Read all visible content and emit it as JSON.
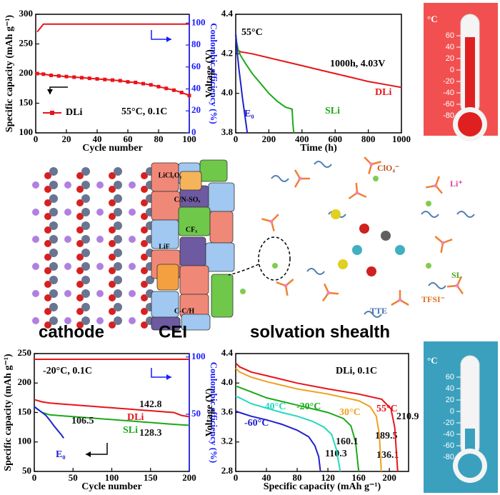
{
  "chart_data": [
    {
      "type": "line",
      "x_label": "Cycle number",
      "y_label": "Specific capacity (mAh g⁻¹)",
      "y2_label": "Coulombic efficiency (%)",
      "x": [
        1,
        5,
        10,
        15,
        20,
        25,
        30,
        35,
        40,
        45,
        50,
        55,
        60,
        65,
        70,
        75,
        80,
        85,
        90,
        95,
        100
      ],
      "xlim": [
        0,
        100
      ],
      "xticks": [
        0,
        20,
        40,
        60,
        80,
        100
      ],
      "ylim": [
        100,
        300
      ],
      "yticks": [
        100,
        150,
        200,
        250,
        300
      ],
      "y2lim": [
        0,
        108
      ],
      "y2ticks": [
        0,
        20,
        40,
        60,
        80,
        100
      ],
      "y2color": "#1a1aff",
      "legend": "lower left",
      "annotations": [
        "55°C, 0.1C"
      ],
      "series": [
        {
          "name": "DLi",
          "color": "#e8141a",
          "marker": "square",
          "values": [
            200,
            199,
            197,
            196,
            195,
            194,
            193,
            192,
            191,
            190,
            189,
            188,
            186,
            185,
            183,
            181,
            178,
            175,
            172,
            168,
            163
          ]
        },
        {
          "color": "#e8141a",
          "axis": "y2",
          "values": [
            92,
            99,
            99,
            99,
            99,
            99,
            99,
            99,
            99,
            99,
            99,
            99,
            99,
            99,
            99,
            99,
            99,
            99,
            99,
            99,
            99
          ]
        }
      ]
    },
    {
      "type": "line",
      "x_label": "Time (h)",
      "y_label": "Voltage (V)",
      "xlim": [
        0,
        1000
      ],
      "xticks": [
        0,
        200,
        400,
        600,
        800,
        1000
      ],
      "ylim": [
        3.8,
        4.4
      ],
      "yticks": [
        3.8,
        {
          "value": 4,
          "label": "4.0"
        },
        4.2,
        4.4
      ],
      "annotations": [
        "55°C",
        "1000h, 4.03V"
      ],
      "series": [
        {
          "name": "DLi",
          "color": "#e8141a",
          "x": [
            0,
            5,
            10,
            30,
            100,
            200,
            300,
            400,
            500,
            600,
            700,
            800,
            900,
            1000
          ],
          "values": [
            4.3,
            4.25,
            4.22,
            4.21,
            4.2,
            4.18,
            4.16,
            4.14,
            4.12,
            4.1,
            4.08,
            4.06,
            4.045,
            4.03
          ]
        },
        {
          "name": "SLi",
          "color": "#1aaa1a",
          "x": [
            0,
            5,
            15,
            30,
            60,
            100,
            150,
            200,
            250,
            300,
            340,
            345,
            350
          ],
          "values": [
            4.3,
            4.26,
            4.22,
            4.19,
            4.15,
            4.1,
            4.05,
            4.0,
            3.96,
            3.93,
            3.92,
            3.85,
            3.8
          ]
        },
        {
          "name": "E₀",
          "color": "#2020d0",
          "x": [
            0,
            5,
            10,
            20,
            30,
            40,
            50,
            60,
            70
          ],
          "values": [
            4.3,
            4.25,
            4.2,
            4.12,
            4.05,
            3.98,
            3.92,
            3.86,
            3.8
          ]
        }
      ]
    },
    {
      "type": "line",
      "x_label": "Cycle number",
      "y_label": "Specific capacity (mAh g⁻¹)",
      "y2_label": "Coulombic efficiency (%)",
      "x": [
        0,
        10,
        20,
        30,
        40,
        50,
        60,
        70,
        80,
        90,
        100,
        110,
        120,
        130,
        140,
        150,
        160,
        170,
        180,
        190,
        200
      ],
      "xlim": [
        0,
        200
      ],
      "xticks": [
        0,
        50,
        100,
        150,
        200
      ],
      "ylim": [
        50,
        250
      ],
      "yticks": [
        50,
        100,
        150,
        200,
        250
      ],
      "y2lim": [
        0,
        103
      ],
      "y2ticks": [
        50,
        100
      ],
      "y2color": "#1a1aff",
      "annotations": [
        "-20°C, 0.1C"
      ],
      "series": [
        {
          "name": "DLi",
          "color": "#e8141a",
          "values": [
            172,
            168,
            166,
            165,
            164,
            163,
            162,
            161,
            160,
            159,
            158,
            157,
            156,
            155,
            154,
            153,
            152,
            151,
            150,
            145,
            142.8
          ]
        },
        {
          "name": "SLi",
          "color": "#1aaa1a",
          "values": [
            160,
            150,
            146,
            145,
            144,
            143,
            142,
            141,
            140,
            139,
            138,
            137,
            136,
            135,
            134,
            133,
            132,
            131,
            130,
            129,
            128.3
          ]
        },
        {
          "name": "E₀",
          "color": "#2020d0",
          "x": [
            0,
            5,
            10,
            15,
            20,
            25,
            30,
            35,
            38
          ],
          "values": [
            160,
            155,
            150,
            145,
            137,
            128,
            120,
            112,
            106.5
          ]
        },
        {
          "color": "#e8141a",
          "axis": "y2",
          "values": [
            98,
            98,
            98,
            98,
            98,
            98,
            98,
            98,
            98,
            98,
            98,
            98,
            98,
            98,
            98,
            98,
            98,
            98,
            98,
            98,
            98
          ]
        }
      ]
    },
    {
      "type": "line",
      "x_label": "Specific capacity (mAh g⁻¹)",
      "y_label": "Voltage (V)",
      "xlim": [
        0,
        225
      ],
      "xticks": [
        0,
        40,
        80,
        120,
        160,
        200
      ],
      "ylim": [
        2.8,
        4.4
      ],
      "yticks": [
        2.8,
        3.2,
        3.6,
        {
          "value": 4,
          "label": "4.0"
        },
        4.4
      ],
      "annotations": [
        "DLi, 0.1C"
      ],
      "series": [
        {
          "name": "-60°C",
          "color": "#2020d0",
          "x": [
            0,
            5,
            20,
            40,
            60,
            80,
            95,
            103,
            108,
            110.3
          ],
          "values": [
            3.62,
            3.6,
            3.55,
            3.5,
            3.44,
            3.36,
            3.27,
            3.15,
            3.0,
            2.8
          ]
        },
        {
          "name": "-40°C",
          "color": "#22d8c0",
          "x": [
            0,
            5,
            20,
            40,
            60,
            80,
            100,
            115,
            125,
            131,
            136.1
          ],
          "values": [
            3.82,
            3.8,
            3.72,
            3.66,
            3.6,
            3.55,
            3.48,
            3.4,
            3.3,
            3.1,
            2.8
          ]
        },
        {
          "name": "-20°C",
          "color": "#1aaa1a",
          "x": [
            0,
            5,
            20,
            40,
            80,
            120,
            140,
            150,
            156,
            160.1
          ],
          "values": [
            3.96,
            3.94,
            3.88,
            3.8,
            3.7,
            3.6,
            3.52,
            3.42,
            3.2,
            2.8
          ]
        },
        {
          "name": "30°C",
          "color": "#f0a020",
          "x": [
            0,
            5,
            20,
            40,
            80,
            120,
            160,
            175,
            183,
            187,
            189.5
          ],
          "values": [
            4.2,
            4.15,
            4.08,
            4.02,
            3.92,
            3.85,
            3.76,
            3.68,
            3.55,
            3.3,
            2.8
          ]
        },
        {
          "name": "55°C",
          "color": "#e8141a",
          "x": [
            0,
            5,
            20,
            40,
            80,
            120,
            160,
            190,
            202,
            207,
            210.9
          ],
          "values": [
            4.27,
            4.22,
            4.15,
            4.1,
            4.0,
            3.92,
            3.85,
            3.78,
            3.65,
            3.4,
            2.8
          ]
        }
      ]
    }
  ],
  "schematic": {
    "captions": [
      "cathode",
      "CEI",
      "solvation shealth"
    ],
    "cei_species": [
      "LiClₓOᵧ",
      "C/N-SOₓ",
      "CFₓ",
      "LiF",
      "C-C/H"
    ],
    "solvation_species": [
      "ClO₄⁻",
      "Li⁺",
      "SL",
      "TFSI⁻",
      "TTE"
    ]
  },
  "thermometers": [
    {
      "unit": "°C",
      "scale": [
        60,
        40,
        20,
        0,
        -20,
        -40,
        -60,
        -80
      ]
    },
    {
      "unit": "°C",
      "scale": [
        60,
        40,
        20,
        0,
        -20,
        -40,
        -60,
        -80
      ]
    }
  ]
}
